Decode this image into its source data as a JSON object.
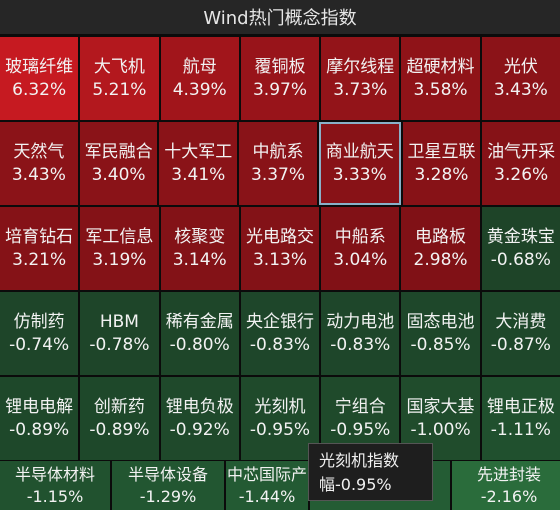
{
  "header": {
    "title": "Wind热门概念指数"
  },
  "tiles": [
    [
      {
        "name": "玻璃纤维",
        "value": "6.32%",
        "color": "#c61a21"
      },
      {
        "name": "大飞机",
        "value": "5.21%",
        "color": "#b3181e"
      },
      {
        "name": "航母",
        "value": "4.39%",
        "color": "#a1151b"
      },
      {
        "name": "覆铜板",
        "value": "3.97%",
        "color": "#98141a"
      },
      {
        "name": "摩尔线程",
        "value": "3.73%",
        "color": "#931419"
      },
      {
        "name": "超硬材料",
        "value": "3.58%",
        "color": "#8f1318"
      },
      {
        "name": "光伏",
        "value": "3.43%",
        "color": "#8b1318"
      }
    ],
    [
      {
        "name": "天然气",
        "value": "3.43%",
        "color": "#8b1318"
      },
      {
        "name": "军民融合",
        "value": "3.40%",
        "color": "#8a1318"
      },
      {
        "name": "十大军工",
        "value": "3.41%",
        "color": "#8a1318"
      },
      {
        "name": "中航系",
        "value": "3.37%",
        "color": "#891318"
      },
      {
        "name": "商业航天",
        "value": "3.33%",
        "color": "#881217",
        "selected": true
      },
      {
        "name": "卫星互联",
        "value": "3.28%",
        "color": "#871217"
      },
      {
        "name": "油气开采",
        "value": "3.26%",
        "color": "#861217"
      }
    ],
    [
      {
        "name": "培育钻石",
        "value": "3.21%",
        "color": "#851217"
      },
      {
        "name": "军工信息",
        "value": "3.19%",
        "color": "#841217"
      },
      {
        "name": "核聚变",
        "value": "3.14%",
        "color": "#831217"
      },
      {
        "name": "光电路交",
        "value": "3.13%",
        "color": "#831217"
      },
      {
        "name": "中船系",
        "value": "3.04%",
        "color": "#811116"
      },
      {
        "name": "电路板",
        "value": "2.98%",
        "color": "#801116"
      },
      {
        "name": "黄金珠宝",
        "value": "-0.68%",
        "color": "#1e4428"
      }
    ],
    [
      {
        "name": "仿制药",
        "value": "-0.74%",
        "color": "#1e4529"
      },
      {
        "name": "HBM",
        "value": "-0.78%",
        "color": "#1e4529"
      },
      {
        "name": "稀有金属",
        "value": "-0.80%",
        "color": "#1e4629"
      },
      {
        "name": "央企银行",
        "value": "-0.83%",
        "color": "#1e462a"
      },
      {
        "name": "动力电池",
        "value": "-0.83%",
        "color": "#1e462a"
      },
      {
        "name": "固态电池",
        "value": "-0.85%",
        "color": "#1e472a"
      },
      {
        "name": "大消费",
        "value": "-0.87%",
        "color": "#1e472a"
      }
    ],
    [
      {
        "name": "锂电电解",
        "value": "-0.89%",
        "color": "#1e482a"
      },
      {
        "name": "创新药",
        "value": "-0.89%",
        "color": "#1e482a"
      },
      {
        "name": "锂电负极",
        "value": "-0.92%",
        "color": "#1f492b"
      },
      {
        "name": "光刻机",
        "value": "-0.95%",
        "color": "#1f4a2b"
      },
      {
        "name": "宁组合",
        "value": "-0.95%",
        "color": "#1f4a2b"
      },
      {
        "name": "国家大基",
        "value": "-1.00%",
        "color": "#204c2c"
      },
      {
        "name": "锂电正极",
        "value": "-1.11%",
        "color": "#20502e"
      }
    ]
  ],
  "bottom": [
    {
      "name": "半导体材料",
      "value": "-1.15%",
      "color": "#21522f"
    },
    {
      "name": "半导体设备",
      "value": "-1.29%",
      "color": "#225631"
    },
    {
      "name": "中芯国际产",
      "value": "-1.44%",
      "color": "#235a33"
    },
    {
      "name": "",
      "value": "",
      "color": "#245c34"
    },
    {
      "name": "先进封装",
      "value": "-2.16%",
      "color": "#2a6c3b"
    }
  ],
  "tooltip": {
    "line1": "光刻机指数",
    "line2": "幅-0.95%"
  }
}
